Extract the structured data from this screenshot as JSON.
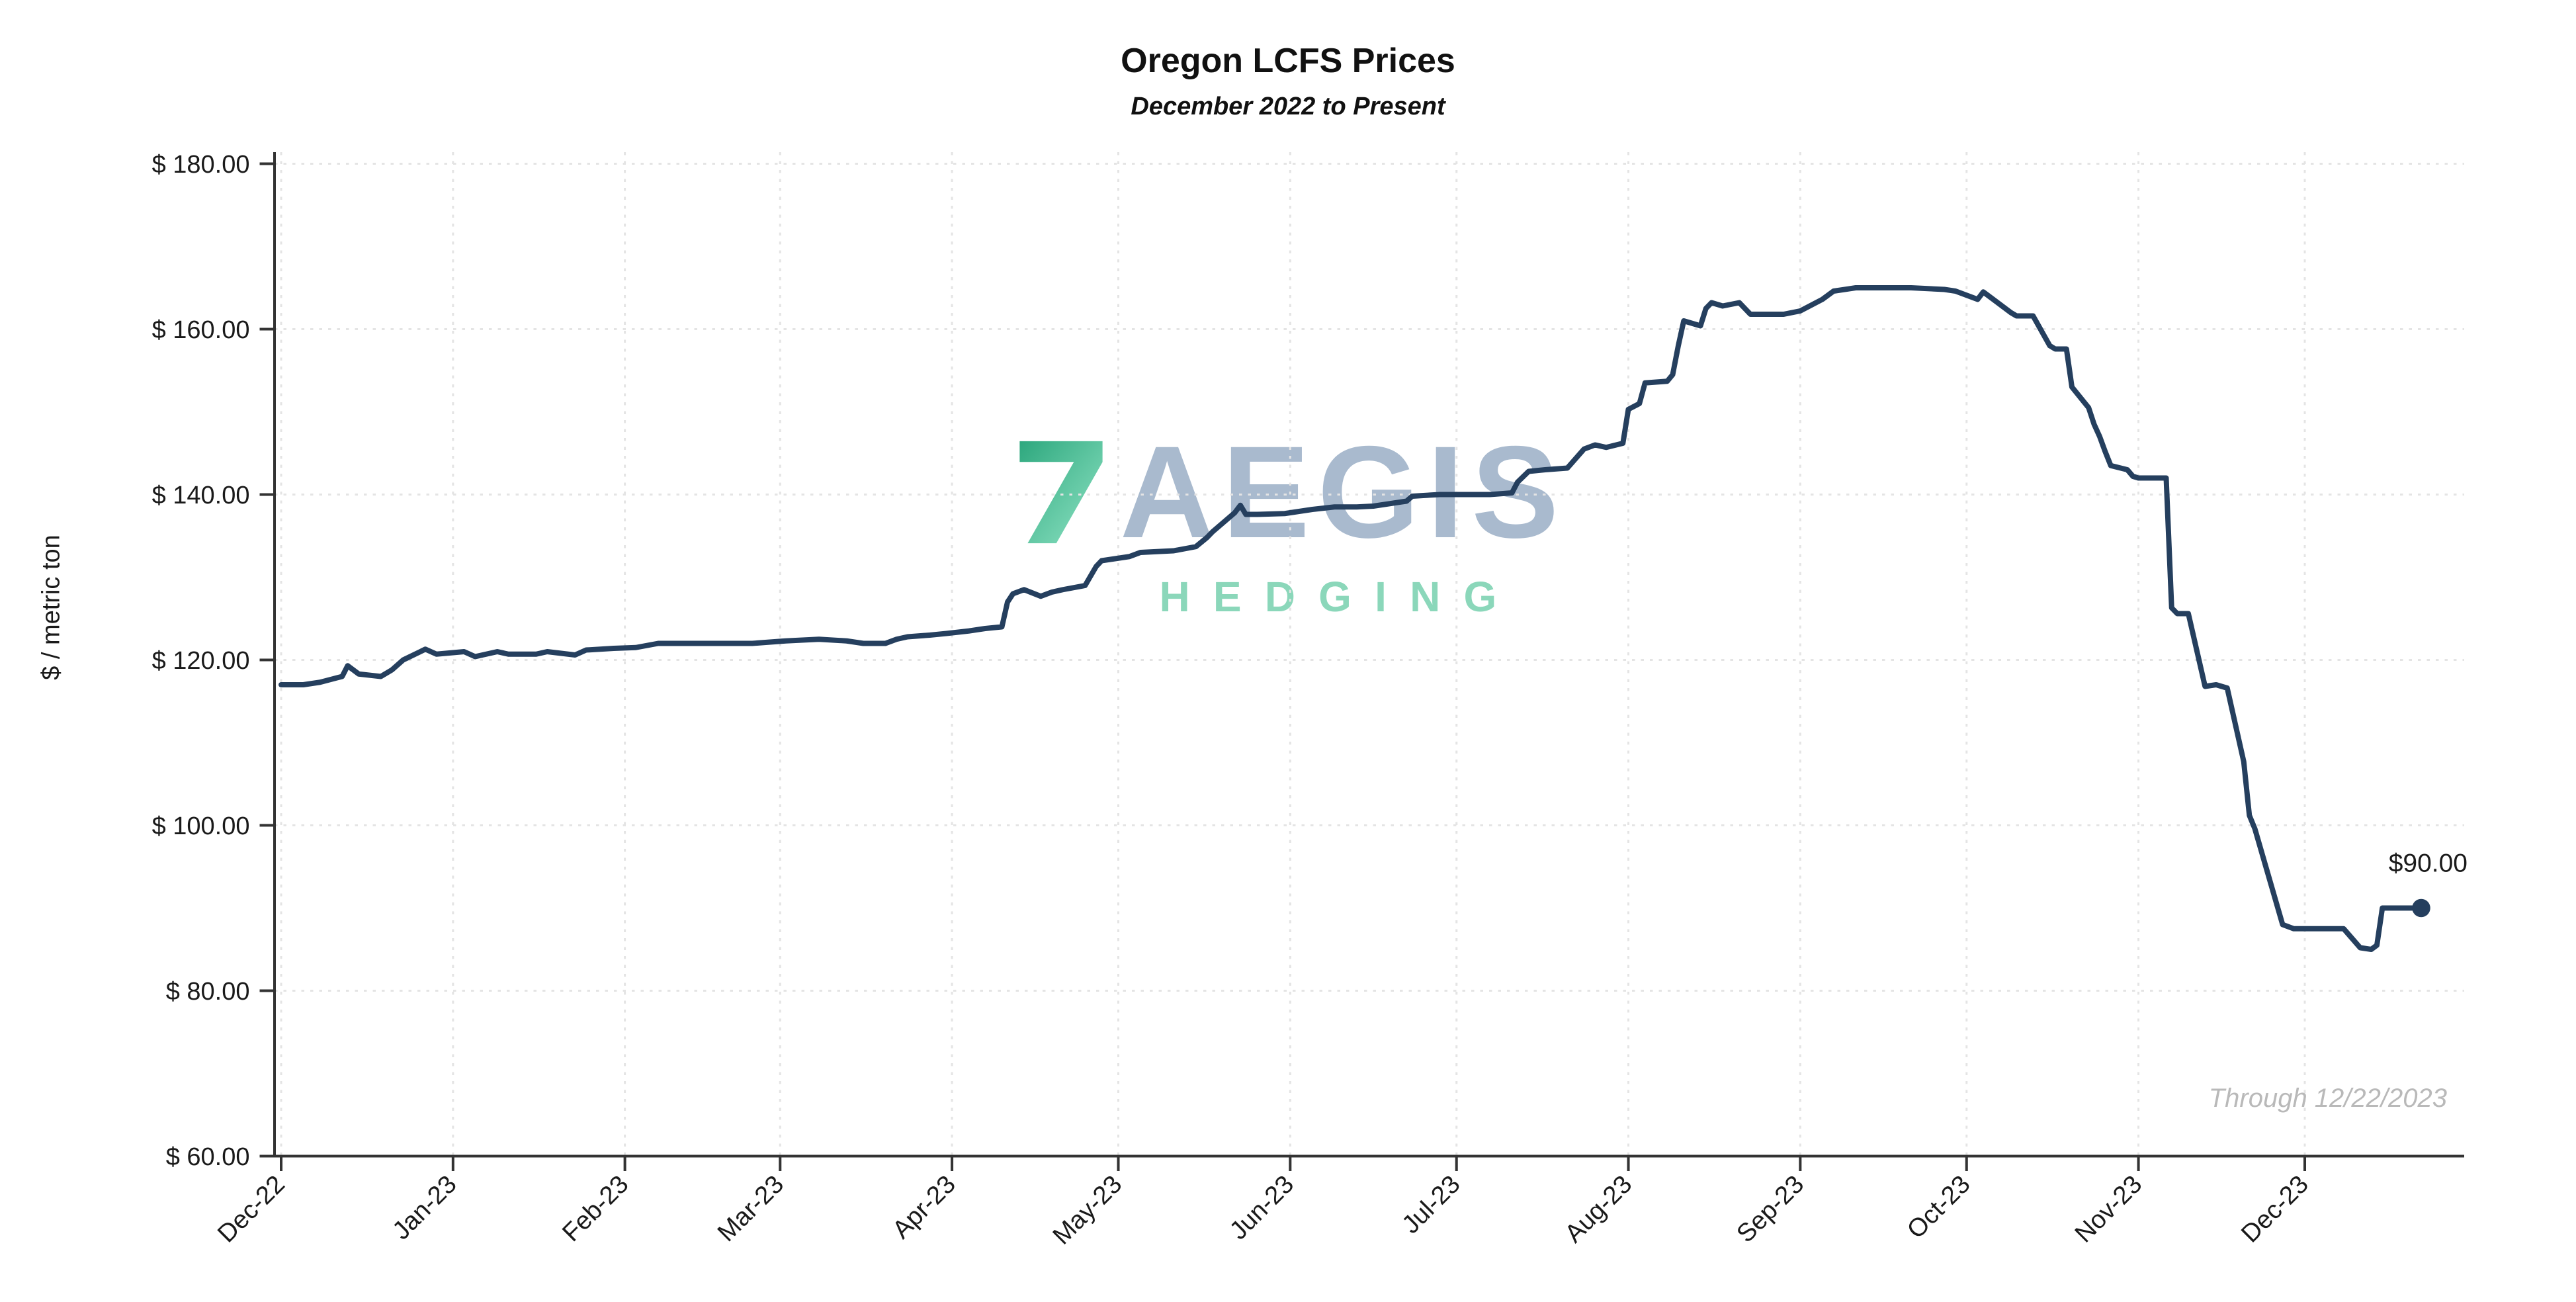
{
  "header": {
    "title": "Oregon LCFS Prices",
    "subtitle": "December 2022 to Present"
  },
  "y_axis": {
    "title": "$ / metric ton"
  },
  "watermark": {
    "brand": "AEGIS",
    "tagline": "HEDGING"
  },
  "footnote": "Through 12/22/2023",
  "colors": {
    "line": "#253F5E",
    "grid": "#e4e4e4",
    "axis": "#333333",
    "tick_text": "#1a1a1a",
    "end_label_text": "#111111",
    "watermark_brand": "#a9bace",
    "watermark_tagline": "#8bd7ba",
    "watermark_logo_teal_dark": "#2ea87e",
    "watermark_logo_teal_light": "#8fe3c4",
    "footnote_text": "#b9b9b9"
  },
  "chart_data": {
    "type": "line",
    "title": "Oregon LCFS Prices",
    "subtitle": "December 2022 to Present",
    "xlabel": "",
    "ylabel": "$ / metric ton",
    "ylim": [
      60,
      180
    ],
    "grid": true,
    "legend": "none",
    "end_label": "$90.00",
    "through_note": "Through 12/22/2023",
    "yticks": [
      {
        "value": 60,
        "label": "$ 60.00"
      },
      {
        "value": 80,
        "label": "$ 80.00"
      },
      {
        "value": 100,
        "label": "$ 100.00"
      },
      {
        "value": 120,
        "label": "$ 120.00"
      },
      {
        "value": 140,
        "label": "$ 140.00"
      },
      {
        "value": 160,
        "label": "$ 160.00"
      },
      {
        "value": 180,
        "label": "$ 180.00"
      }
    ],
    "x_ticks": [
      {
        "date": "2022-12-01",
        "label": "Dec-22"
      },
      {
        "date": "2023-01-01",
        "label": "Jan-23"
      },
      {
        "date": "2023-02-01",
        "label": "Feb-23"
      },
      {
        "date": "2023-03-01",
        "label": "Mar-23"
      },
      {
        "date": "2023-04-01",
        "label": "Apr-23"
      },
      {
        "date": "2023-05-01",
        "label": "May-23"
      },
      {
        "date": "2023-06-01",
        "label": "Jun-23"
      },
      {
        "date": "2023-07-01",
        "label": "Jul-23"
      },
      {
        "date": "2023-08-01",
        "label": "Aug-23"
      },
      {
        "date": "2023-09-01",
        "label": "Sep-23"
      },
      {
        "date": "2023-10-01",
        "label": "Oct-23"
      },
      {
        "date": "2023-11-01",
        "label": "Nov-23"
      },
      {
        "date": "2023-12-01",
        "label": "Dec-23"
      }
    ],
    "points": [
      [
        "2022-12-01",
        117
      ],
      [
        "2022-12-05",
        117
      ],
      [
        "2022-12-08",
        117.3
      ],
      [
        "2022-12-12",
        118
      ],
      [
        "2022-12-13",
        119.3
      ],
      [
        "2022-12-15",
        118.3
      ],
      [
        "2022-12-19",
        118
      ],
      [
        "2022-12-21",
        118.8
      ],
      [
        "2022-12-23",
        120
      ],
      [
        "2022-12-27",
        121.3
      ],
      [
        "2022-12-29",
        120.7
      ],
      [
        "2023-01-03",
        121
      ],
      [
        "2023-01-05",
        120.4
      ],
      [
        "2023-01-09",
        121
      ],
      [
        "2023-01-11",
        120.7
      ],
      [
        "2023-01-16",
        120.7
      ],
      [
        "2023-01-18",
        121
      ],
      [
        "2023-01-23",
        120.6
      ],
      [
        "2023-01-25",
        121.2
      ],
      [
        "2023-01-30",
        121.4
      ],
      [
        "2023-02-03",
        121.5
      ],
      [
        "2023-02-07",
        122
      ],
      [
        "2023-02-13",
        122
      ],
      [
        "2023-02-17",
        122
      ],
      [
        "2023-02-24",
        122
      ],
      [
        "2023-03-02",
        122.3
      ],
      [
        "2023-03-08",
        122.5
      ],
      [
        "2023-03-13",
        122.3
      ],
      [
        "2023-03-16",
        122
      ],
      [
        "2023-03-20",
        122
      ],
      [
        "2023-03-22",
        122.5
      ],
      [
        "2023-03-24",
        122.8
      ],
      [
        "2023-03-28",
        123
      ],
      [
        "2023-03-31",
        123.2
      ],
      [
        "2023-04-04",
        123.5
      ],
      [
        "2023-04-07",
        123.8
      ],
      [
        "2023-04-10",
        124
      ],
      [
        "2023-04-11",
        127
      ],
      [
        "2023-04-12",
        128
      ],
      [
        "2023-04-14",
        128.5
      ],
      [
        "2023-04-17",
        127.7
      ],
      [
        "2023-04-19",
        128.2
      ],
      [
        "2023-04-21",
        128.5
      ],
      [
        "2023-04-25",
        129
      ],
      [
        "2023-04-27",
        131.3
      ],
      [
        "2023-04-28",
        132
      ],
      [
        "2023-05-03",
        132.5
      ],
      [
        "2023-05-05",
        133
      ],
      [
        "2023-05-11",
        133.2
      ],
      [
        "2023-05-15",
        133.7
      ],
      [
        "2023-05-17",
        134.8
      ],
      [
        "2023-05-18",
        135.5
      ],
      [
        "2023-05-22",
        137.8
      ],
      [
        "2023-05-23",
        138.7
      ],
      [
        "2023-05-24",
        137.6
      ],
      [
        "2023-05-26",
        137.6
      ],
      [
        "2023-05-31",
        137.7
      ],
      [
        "2023-06-05",
        138.2
      ],
      [
        "2023-06-09",
        138.5
      ],
      [
        "2023-06-13",
        138.5
      ],
      [
        "2023-06-16",
        138.6
      ],
      [
        "2023-06-22",
        139.2
      ],
      [
        "2023-06-23",
        139.8
      ],
      [
        "2023-06-28",
        140
      ],
      [
        "2023-07-03",
        140
      ],
      [
        "2023-07-07",
        140
      ],
      [
        "2023-07-11",
        140.2
      ],
      [
        "2023-07-12",
        141.5
      ],
      [
        "2023-07-14",
        142.8
      ],
      [
        "2023-07-17",
        143
      ],
      [
        "2023-07-21",
        143.2
      ],
      [
        "2023-07-24",
        145.5
      ],
      [
        "2023-07-26",
        146
      ],
      [
        "2023-07-28",
        145.7
      ],
      [
        "2023-07-31",
        146.2
      ],
      [
        "2023-08-01",
        150.3
      ],
      [
        "2023-08-03",
        151
      ],
      [
        "2023-08-04",
        153.5
      ],
      [
        "2023-08-08",
        153.7
      ],
      [
        "2023-08-09",
        154.5
      ],
      [
        "2023-08-10",
        158
      ],
      [
        "2023-08-11",
        161
      ],
      [
        "2023-08-14",
        160.4
      ],
      [
        "2023-08-15",
        162.5
      ],
      [
        "2023-08-16",
        163.2
      ],
      [
        "2023-08-18",
        162.8
      ],
      [
        "2023-08-21",
        163.2
      ],
      [
        "2023-08-23",
        161.8
      ],
      [
        "2023-08-29",
        161.8
      ],
      [
        "2023-09-01",
        162.2
      ],
      [
        "2023-09-05",
        163.6
      ],
      [
        "2023-09-07",
        164.6
      ],
      [
        "2023-09-11",
        165
      ],
      [
        "2023-09-15",
        165
      ],
      [
        "2023-09-21",
        165
      ],
      [
        "2023-09-27",
        164.8
      ],
      [
        "2023-09-29",
        164.6
      ],
      [
        "2023-10-03",
        163.6
      ],
      [
        "2023-10-04",
        164.5
      ],
      [
        "2023-10-06",
        163.5
      ],
      [
        "2023-10-09",
        162
      ],
      [
        "2023-10-10",
        161.6
      ],
      [
        "2023-10-13",
        161.6
      ],
      [
        "2023-10-16",
        158
      ],
      [
        "2023-10-17",
        157.6
      ],
      [
        "2023-10-19",
        157.6
      ],
      [
        "2023-10-20",
        153
      ],
      [
        "2023-10-23",
        150.5
      ],
      [
        "2023-10-24",
        148.5
      ],
      [
        "2023-10-25",
        147
      ],
      [
        "2023-10-26",
        145.2
      ],
      [
        "2023-10-27",
        143.5
      ],
      [
        "2023-10-30",
        143
      ],
      [
        "2023-10-31",
        142.2
      ],
      [
        "2023-11-01",
        142
      ],
      [
        "2023-11-06",
        142
      ],
      [
        "2023-11-07",
        126.3
      ],
      [
        "2023-11-08",
        125.6
      ],
      [
        "2023-11-10",
        125.6
      ],
      [
        "2023-11-13",
        116.8
      ],
      [
        "2023-11-15",
        117
      ],
      [
        "2023-11-17",
        116.6
      ],
      [
        "2023-11-20",
        107.7
      ],
      [
        "2023-11-21",
        101.2
      ],
      [
        "2023-11-22",
        99.6
      ],
      [
        "2023-11-27",
        88
      ],
      [
        "2023-11-29",
        87.5
      ],
      [
        "2023-12-04",
        87.5
      ],
      [
        "2023-12-08",
        87.5
      ],
      [
        "2023-12-11",
        85.2
      ],
      [
        "2023-12-13",
        85
      ],
      [
        "2023-12-14",
        85.5
      ],
      [
        "2023-12-15",
        90
      ],
      [
        "2023-12-18",
        90
      ],
      [
        "2023-12-20",
        90
      ],
      [
        "2023-12-22",
        90
      ]
    ]
  }
}
